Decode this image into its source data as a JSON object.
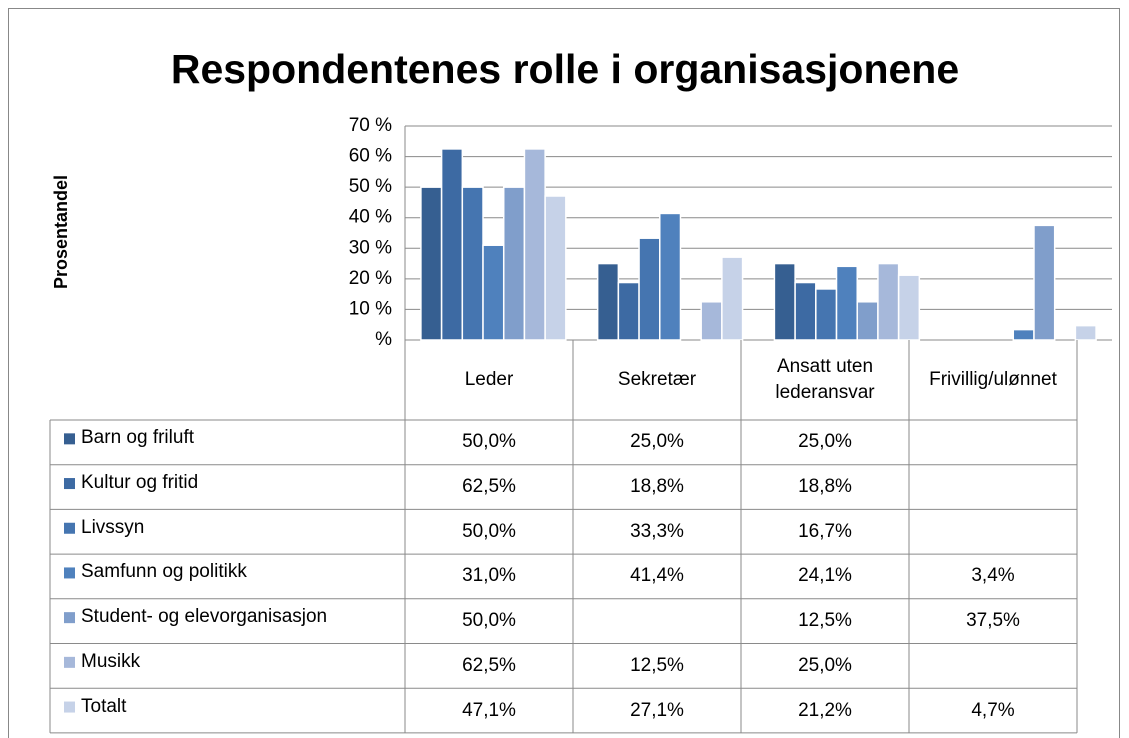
{
  "chart_data": {
    "type": "bar",
    "title": "Respondentenes rolle i organisasjonene",
    "y_label": "Prosentandel",
    "categories": [
      "Leder",
      "Sekretær",
      "Ansatt uten lederansvar",
      "Frivillig/ulønnet"
    ],
    "ylim": [
      0,
      70
    ],
    "yticks": [
      {
        "value": 0,
        "label": "%"
      },
      {
        "value": 10,
        "label": "10 %"
      },
      {
        "value": 20,
        "label": "20 %"
      },
      {
        "value": 30,
        "label": "30 %"
      },
      {
        "value": 40,
        "label": "40 %"
      },
      {
        "value": 50,
        "label": "50 %"
      },
      {
        "value": 60,
        "label": "60 %"
      },
      {
        "value": 70,
        "label": "70 %"
      }
    ],
    "grid": true,
    "series": [
      {
        "name": "Barn og friluft",
        "color": "#365f91",
        "values": [
          50.0,
          25.0,
          25.0,
          null
        ],
        "value_labels": [
          "50,0%",
          "25,0%",
          "25,0%",
          null
        ]
      },
      {
        "name": "Kultur og fritid",
        "color": "#3d6aa3",
        "values": [
          62.5,
          18.8,
          18.8,
          null
        ],
        "value_labels": [
          "62,5%",
          "18,8%",
          "18,8%",
          null
        ]
      },
      {
        "name": "Livssyn",
        "color": "#4575b0",
        "values": [
          50.0,
          33.3,
          16.7,
          null
        ],
        "value_labels": [
          "50,0%",
          "33,3%",
          "16,7%",
          null
        ]
      },
      {
        "name": "Samfunn og politikk",
        "color": "#4f81bd",
        "values": [
          31.0,
          41.4,
          24.1,
          3.4
        ],
        "value_labels": [
          "31,0%",
          "41,4%",
          "24,1%",
          "3,4%"
        ]
      },
      {
        "name": "Student- og elevorganisasjon",
        "color": "#809ecb",
        "values": [
          50.0,
          null,
          12.5,
          37.5
        ],
        "value_labels": [
          "50,0%",
          null,
          "12,5%",
          "37,5%"
        ]
      },
      {
        "name": "Musikk",
        "color": "#a6b8da",
        "values": [
          62.5,
          12.5,
          25.0,
          null
        ],
        "value_labels": [
          "62,5%",
          "12,5%",
          "25,0%",
          null
        ]
      },
      {
        "name": "Totalt",
        "color": "#c6d2e8",
        "values": [
          47.1,
          27.1,
          21.2,
          4.7
        ],
        "value_labels": [
          "47,1%",
          "27,1%",
          "21,2%",
          "4,7%"
        ]
      }
    ]
  }
}
